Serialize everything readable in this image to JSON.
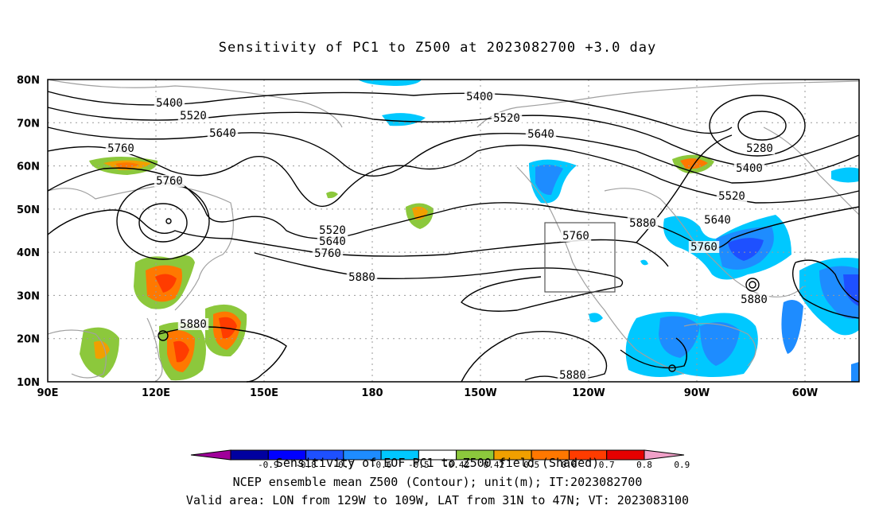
{
  "title": "Sensitivity of PC1 to Z500 at 2023082700 +3.0 day",
  "lat_labels": [
    "80N",
    "70N",
    "60N",
    "50N",
    "40N",
    "30N",
    "20N",
    "10N"
  ],
  "lon_labels": [
    "90E",
    "120E",
    "150E",
    "180",
    "150W",
    "120W",
    "90W",
    "60W"
  ],
  "contour_labels": [
    "5400",
    "5520",
    "5640",
    "5760",
    "5760",
    "5400",
    "5520",
    "5640",
    "5280",
    "5400",
    "5520",
    "5640",
    "5760",
    "5880",
    "5520",
    "5640",
    "5760",
    "5880",
    "5760",
    "5880",
    "5880",
    "5880"
  ],
  "colorbar": {
    "ticks": [
      "-0.9",
      "-0.8",
      "-0.7",
      "-0.6",
      "-0.5",
      "-0.42",
      "0.42",
      "0.5",
      "0.6",
      "0.7",
      "0.8",
      "0.9"
    ],
    "colors": [
      "#a0009a",
      "#0000a0",
      "#0000ff",
      "#1e50ff",
      "#1e8cff",
      "#00c8ff",
      "#ffffff",
      "#8cc83c",
      "#f0a000",
      "#ff7800",
      "#ff3c00",
      "#e60000",
      "#f0a0c8"
    ]
  },
  "captions": [
    "Sensitivity of EOF PC1 to Z500 field (Shaded)",
    "NCEP ensemble mean Z500 (Contour); unit(m); IT:2023082700",
    "Valid area: LON from 129W to 109W, LAT from 31N to 47N; VT: 2023083100"
  ],
  "colors": {
    "land": "#a0a0a0",
    "contour": "#000000",
    "grid": "#9a9a9a"
  }
}
